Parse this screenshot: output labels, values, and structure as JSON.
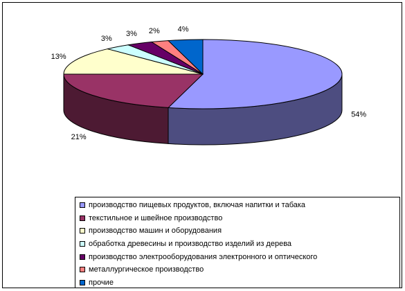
{
  "chart_data": {
    "type": "pie",
    "style": "3d-exploded-none",
    "title": "",
    "legend_position": "bottom",
    "slices": [
      {
        "name": "производство пищевых продуктов, включая напитки и табака",
        "value": 54,
        "label": "54%",
        "top_color": "#9999ff",
        "side_color": "#4d4d80"
      },
      {
        "name": "текстильное и швейное производство",
        "value": 21,
        "label": "21%",
        "top_color": "#993366",
        "side_color": "#4d1a33"
      },
      {
        "name": "производство машин и оборудования",
        "value": 13,
        "label": "13%",
        "top_color": "#ffffcc",
        "side_color": "#808066"
      },
      {
        "name": "обработка древесины и производство изделий из дерева",
        "value": 3,
        "label": "3%",
        "top_color": "#ccffff",
        "side_color": "#668080"
      },
      {
        "name": "производство электрооборудования электронного и оптического",
        "value": 3,
        "label": "3%",
        "top_color": "#660066",
        "side_color": "#330033"
      },
      {
        "name": "металлургическое производство",
        "value": 2,
        "label": "2%",
        "top_color": "#ff8080",
        "side_color": "#804040"
      },
      {
        "name": "прочие",
        "value": 4,
        "label": "4%",
        "top_color": "#0066cc",
        "side_color": "#003366"
      }
    ]
  }
}
